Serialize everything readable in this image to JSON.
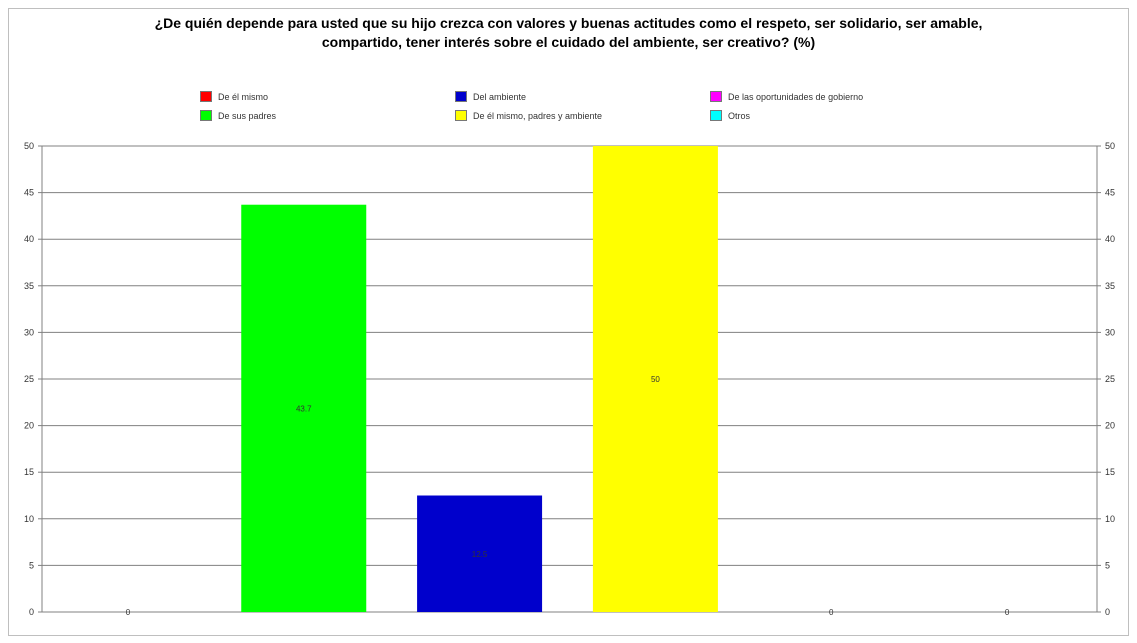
{
  "title_lines": [
    "¿De quién depende para usted que su hijo crezca con valores y buenas actitudes como el respeto, ser solidario, ser amable,",
    "compartido, tener interés sobre el cuidado del ambiente, ser creativo? (%)"
  ],
  "chart_data": {
    "type": "bar",
    "title": "¿De quién depende para usted que su hijo crezca con valores y buenas actitudes como el respeto, ser solidario, ser amable, compartido, tener interés sobre el cuidado del ambiente, ser creativo? (%)",
    "categories": [
      "De él mismo",
      "De sus padres",
      "Del ambiente",
      "De él mismo, padres y ambiente",
      "De las oportunidades de gobierno",
      "Otros"
    ],
    "values": [
      0,
      43.7,
      12.5,
      50,
      0,
      0
    ],
    "data_labels": [
      "0",
      "43.7",
      "12.5",
      "50",
      "0",
      "0"
    ],
    "colors": [
      "#ff0000",
      "#00ff00",
      "#0000cc",
      "#ffff00",
      "#ff00ff",
      "#00ffff"
    ],
    "ylim": [
      0,
      50
    ],
    "yticks": [
      "0",
      "5",
      "10",
      "15",
      "20",
      "25",
      "30",
      "35",
      "40",
      "45",
      "50"
    ],
    "secondary_axis": true,
    "grid": true,
    "legend_position": "top",
    "xlabel": "",
    "ylabel": ""
  }
}
